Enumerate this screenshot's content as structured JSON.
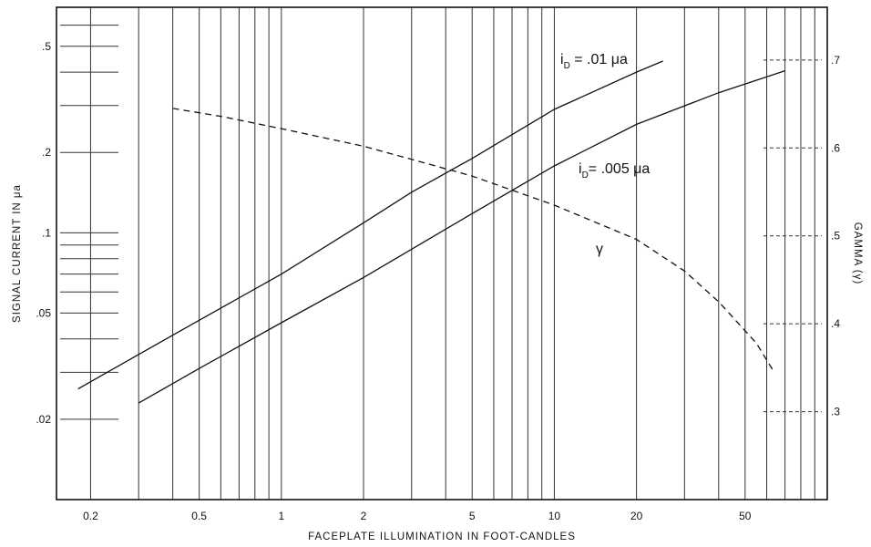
{
  "chart_data": {
    "type": "line",
    "title": "",
    "xlabel": "FACEPLATE ILLUMINATION IN FOOT-CANDLES",
    "ylabel": "SIGNAL CURRENT IN μa",
    "y2label": "GAMMA (γ)",
    "x_scale": "log",
    "y_scale": "log",
    "xlim": [
      0.15,
      100
    ],
    "ylim": [
      0.01,
      0.7
    ],
    "y2lim": [
      0.2,
      0.76
    ],
    "grid": true,
    "x_ticks": [
      {
        "value": 0.2,
        "label": "0.2"
      },
      {
        "value": 0.5,
        "label": "0.5"
      },
      {
        "value": 1,
        "label": "1"
      },
      {
        "value": 2,
        "label": "2"
      },
      {
        "value": 5,
        "label": "5"
      },
      {
        "value": 10,
        "label": "10"
      },
      {
        "value": 20,
        "label": "20"
      },
      {
        "value": 50,
        "label": "50"
      }
    ],
    "y_ticks": [
      {
        "value": 0.5,
        "label": ".5"
      },
      {
        "value": 0.2,
        "label": ".2"
      },
      {
        "value": 0.1,
        "label": ".1"
      },
      {
        "value": 0.05,
        "label": ".05"
      },
      {
        "value": 0.02,
        "label": ".02"
      }
    ],
    "y2_ticks": [
      {
        "value": 0.7,
        "label": ".7"
      },
      {
        "value": 0.6,
        "label": ".6"
      },
      {
        "value": 0.5,
        "label": ".5"
      },
      {
        "value": 0.4,
        "label": ".4"
      },
      {
        "value": 0.3,
        "label": ".3"
      }
    ],
    "series": [
      {
        "name": "iD = .01 μa",
        "axis": "left",
        "style": "solid",
        "x": [
          0.18,
          0.3,
          0.5,
          1,
          2,
          3,
          5,
          10,
          20,
          25
        ],
        "y": [
          0.026,
          0.035,
          0.047,
          0.07,
          0.109,
          0.142,
          0.19,
          0.29,
          0.4,
          0.44
        ]
      },
      {
        "name": "iD = .005 μa",
        "axis": "left",
        "style": "solid",
        "x": [
          0.3,
          0.5,
          1,
          2,
          5,
          10,
          20,
          40,
          70
        ],
        "y": [
          0.023,
          0.031,
          0.046,
          0.068,
          0.118,
          0.178,
          0.255,
          0.335,
          0.405
        ]
      },
      {
        "name": "γ",
        "axis": "right",
        "style": "dashed",
        "x": [
          0.4,
          0.6,
          1,
          2,
          3,
          5,
          10,
          20,
          30,
          40,
          55,
          63
        ],
        "y": [
          0.645,
          0.636,
          0.622,
          0.602,
          0.587,
          0.568,
          0.535,
          0.496,
          0.46,
          0.425,
          0.378,
          0.348
        ]
      }
    ],
    "annotations": {
      "curve1_prefix": "i",
      "curve1_subscript": "D",
      "curve1_value": " = .01 μa",
      "curve2_prefix": "i",
      "curve2_subscript": "D",
      "curve2_value": "= .005 μa",
      "gamma": "γ"
    }
  }
}
